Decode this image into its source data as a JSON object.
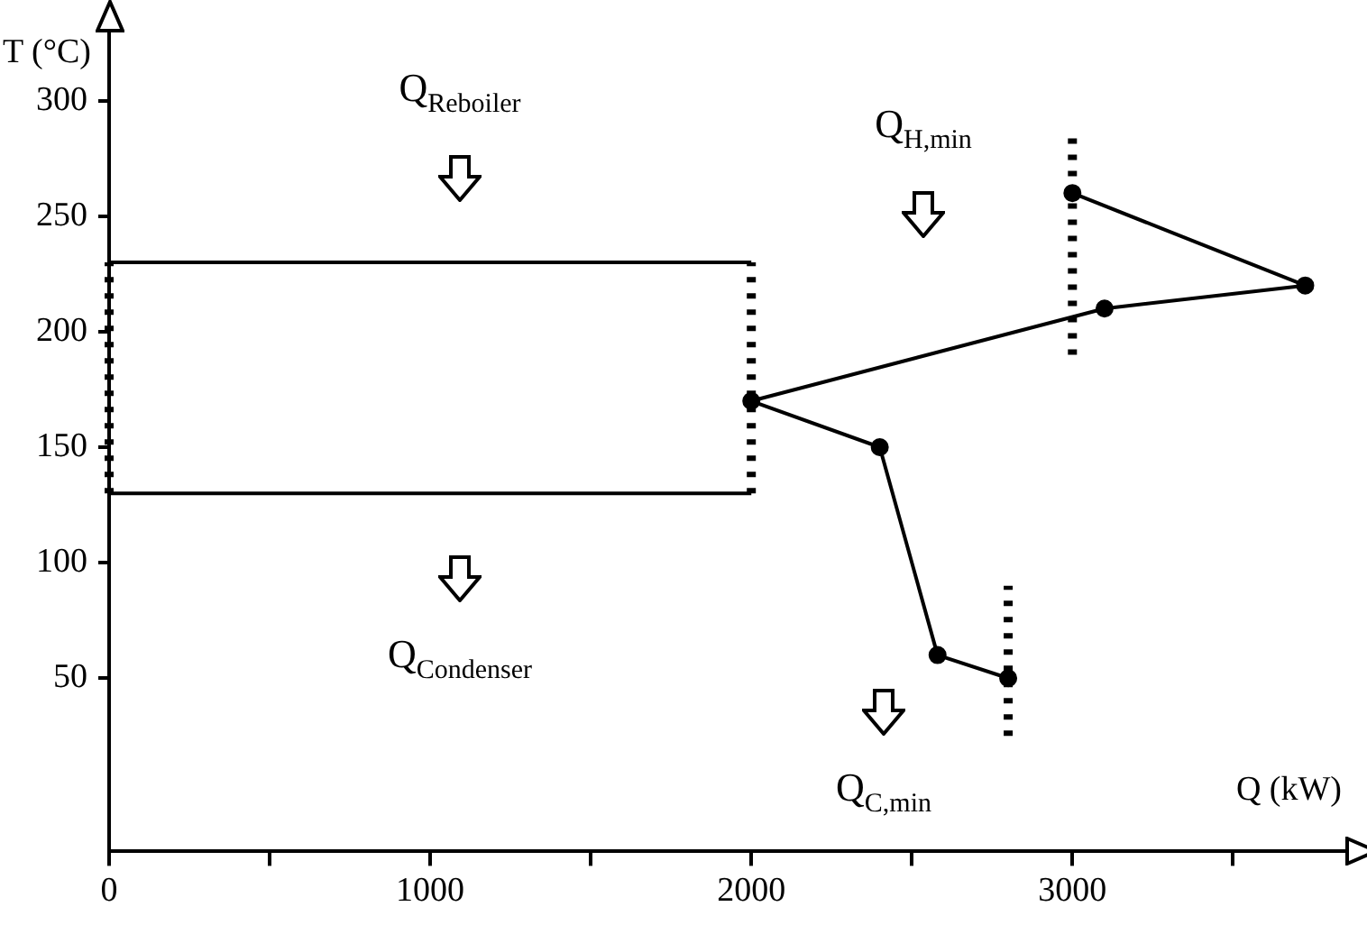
{
  "chart_data": {
    "type": "line",
    "xlabel": "Q (kW)",
    "ylabel": "T (°C)",
    "xlim": [
      0,
      3850
    ],
    "ylim": [
      -25,
      330
    ],
    "xticks": [
      0,
      {
        "value": 500,
        "label": null
      },
      1000,
      {
        "value": 1500,
        "label": null
      },
      2000,
      {
        "value": 2500,
        "label": null
      },
      3000,
      {
        "value": 3500,
        "label": null
      }
    ],
    "yticks": [
      50,
      100,
      150,
      200,
      250,
      300
    ],
    "series": [
      {
        "color": "#000000",
        "marker": "circle",
        "x": [
          3000,
          3725,
          3100,
          2000,
          2400,
          2580,
          2800
        ],
        "values": [
          260,
          220,
          210,
          170,
          150,
          60,
          50
        ]
      },
      {
        "color": "#000000",
        "x": [
          0,
          2000
        ],
        "values": [
          230,
          230
        ]
      },
      {
        "color": "#000000",
        "x": [
          0,
          2000
        ],
        "values": [
          130,
          130
        ]
      },
      {
        "color": "#000000",
        "line_style": "dotted",
        "x": [
          0,
          0
        ],
        "values": [
          130,
          230
        ]
      },
      {
        "color": "#000000",
        "line_style": "dotted",
        "x": [
          2000,
          2000
        ],
        "values": [
          130,
          230
        ]
      },
      {
        "color": "#000000",
        "line_style": "dotted",
        "x": [
          3000,
          3000
        ],
        "values": [
          190,
          285
        ]
      },
      {
        "color": "#000000",
        "line_style": "dotted",
        "x": [
          2800,
          2800
        ],
        "values": [
          25,
          90
        ]
      }
    ],
    "annotations": [
      "Q$_{Reboiler}$",
      "Q$_{Condenser}$",
      "Q$_{H,min}$",
      "Q$_{C,min}$"
    ]
  }
}
